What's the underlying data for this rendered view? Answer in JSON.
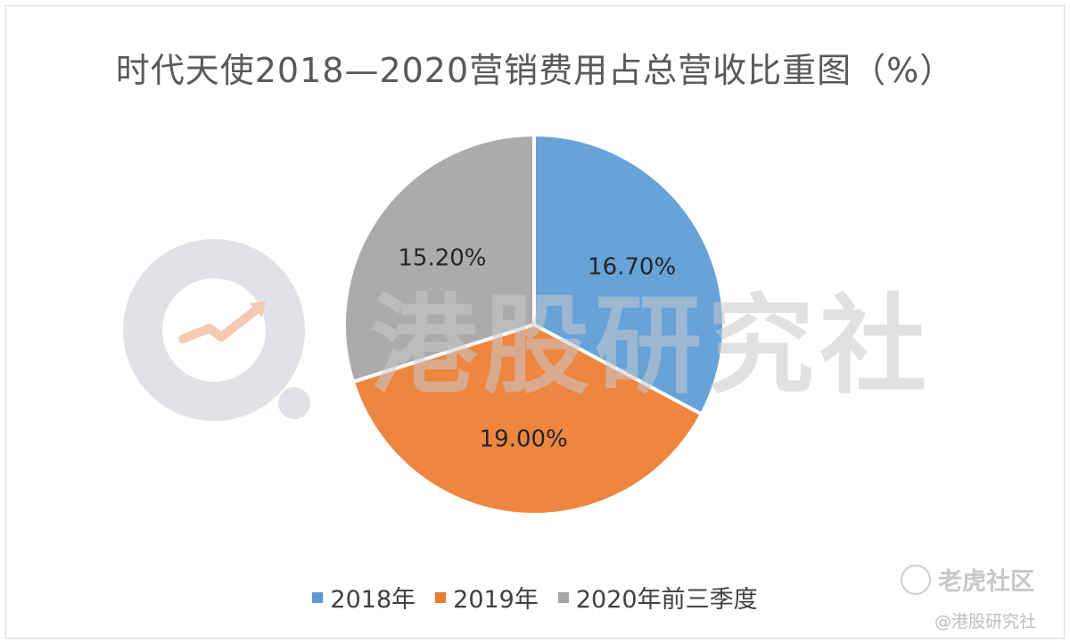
{
  "title": "时代天使2018—2020营销费用占总营收比重图（%）",
  "watermarks": {
    "center_text": "港股研究社",
    "corner_logo": "老虎社区",
    "corner_handle": "@港股研究社"
  },
  "chart_data": {
    "type": "pie",
    "title": "时代天使2018—2020营销费用占总营收比重图（%）",
    "categories": [
      "2018年",
      "2019年",
      "2020年前三季度"
    ],
    "values": [
      16.7,
      19.0,
      15.2
    ],
    "data_labels": [
      "16.70%",
      "19.00%",
      "15.20%"
    ],
    "colors": [
      "#5b9bd5",
      "#ed7d31",
      "#a5a5a5"
    ],
    "legend_position": "bottom",
    "start_angle": "12 o'clock",
    "direction": "clockwise"
  },
  "legend": [
    {
      "label": "2018年",
      "color": "#5b9bd5"
    },
    {
      "label": "2019年",
      "color": "#ed7d31"
    },
    {
      "label": "2020年前三季度",
      "color": "#a5a5a5"
    }
  ]
}
